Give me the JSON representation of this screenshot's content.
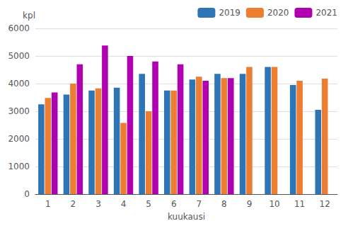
{
  "chart_data": {
    "type": "bar",
    "categories": [
      "1",
      "2",
      "3",
      "4",
      "5",
      "6",
      "7",
      "8",
      "9",
      "10",
      "11",
      "12"
    ],
    "series": [
      {
        "name": "2019",
        "color": "#2E75B6",
        "values": [
          3250,
          3600,
          3750,
          3850,
          4350,
          3750,
          4150,
          4350,
          4350,
          4600,
          3950,
          3050
        ]
      },
      {
        "name": "2020",
        "color": "#ED7D31",
        "values": [
          3480,
          4000,
          3830,
          2580,
          3000,
          3750,
          4250,
          4200,
          4600,
          4600,
          4100,
          4180
        ]
      },
      {
        "name": "2021",
        "color": "#B000B0",
        "values": [
          3680,
          4700,
          5380,
          5000,
          4800,
          4700,
          4100,
          4200,
          null,
          null,
          null,
          null
        ]
      }
    ],
    "xlabel": "kuukausi",
    "ylabel": "kpl",
    "ylim": [
      0,
      6000
    ],
    "yticks": [
      0,
      1000,
      2000,
      3000,
      4000,
      5000,
      6000
    ],
    "grid": true,
    "legend": "upper right"
  }
}
